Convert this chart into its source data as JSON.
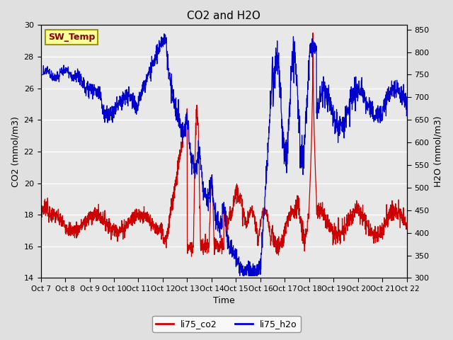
{
  "title": "CO2 and H2O",
  "xlabel": "Time",
  "ylabel_left": "CO2 (mmol/m3)",
  "ylabel_right": "H2O (mmol/m3)",
  "xlim": [
    0,
    15
  ],
  "ylim_left": [
    14,
    30
  ],
  "ylim_right": [
    300,
    860
  ],
  "yticks_left": [
    14,
    16,
    18,
    20,
    22,
    24,
    26,
    28,
    30
  ],
  "yticks_right": [
    300,
    350,
    400,
    450,
    500,
    550,
    600,
    650,
    700,
    750,
    800,
    850
  ],
  "xtick_labels": [
    "Oct 7",
    "Oct 8",
    "Oct 9",
    "Oct 10",
    "Oct 11",
    "Oct 12",
    "Oct 13",
    "Oct 14",
    "Oct 15",
    "Oct 16",
    "Oct 17",
    "Oct 18",
    "Oct 19",
    "Oct 20",
    "Oct 21",
    "Oct 22"
  ],
  "co2_color": "#cc0000",
  "h2o_color": "#0000cc",
  "fig_facecolor": "#e0e0e0",
  "plot_facecolor": "#e8e8e8",
  "annotation_text": "SW_Temp",
  "annotation_bg": "#ffff99",
  "annotation_border": "#999900",
  "legend_co2": "li75_co2",
  "legend_h2o": "li75_h2o",
  "linewidth": 0.9
}
